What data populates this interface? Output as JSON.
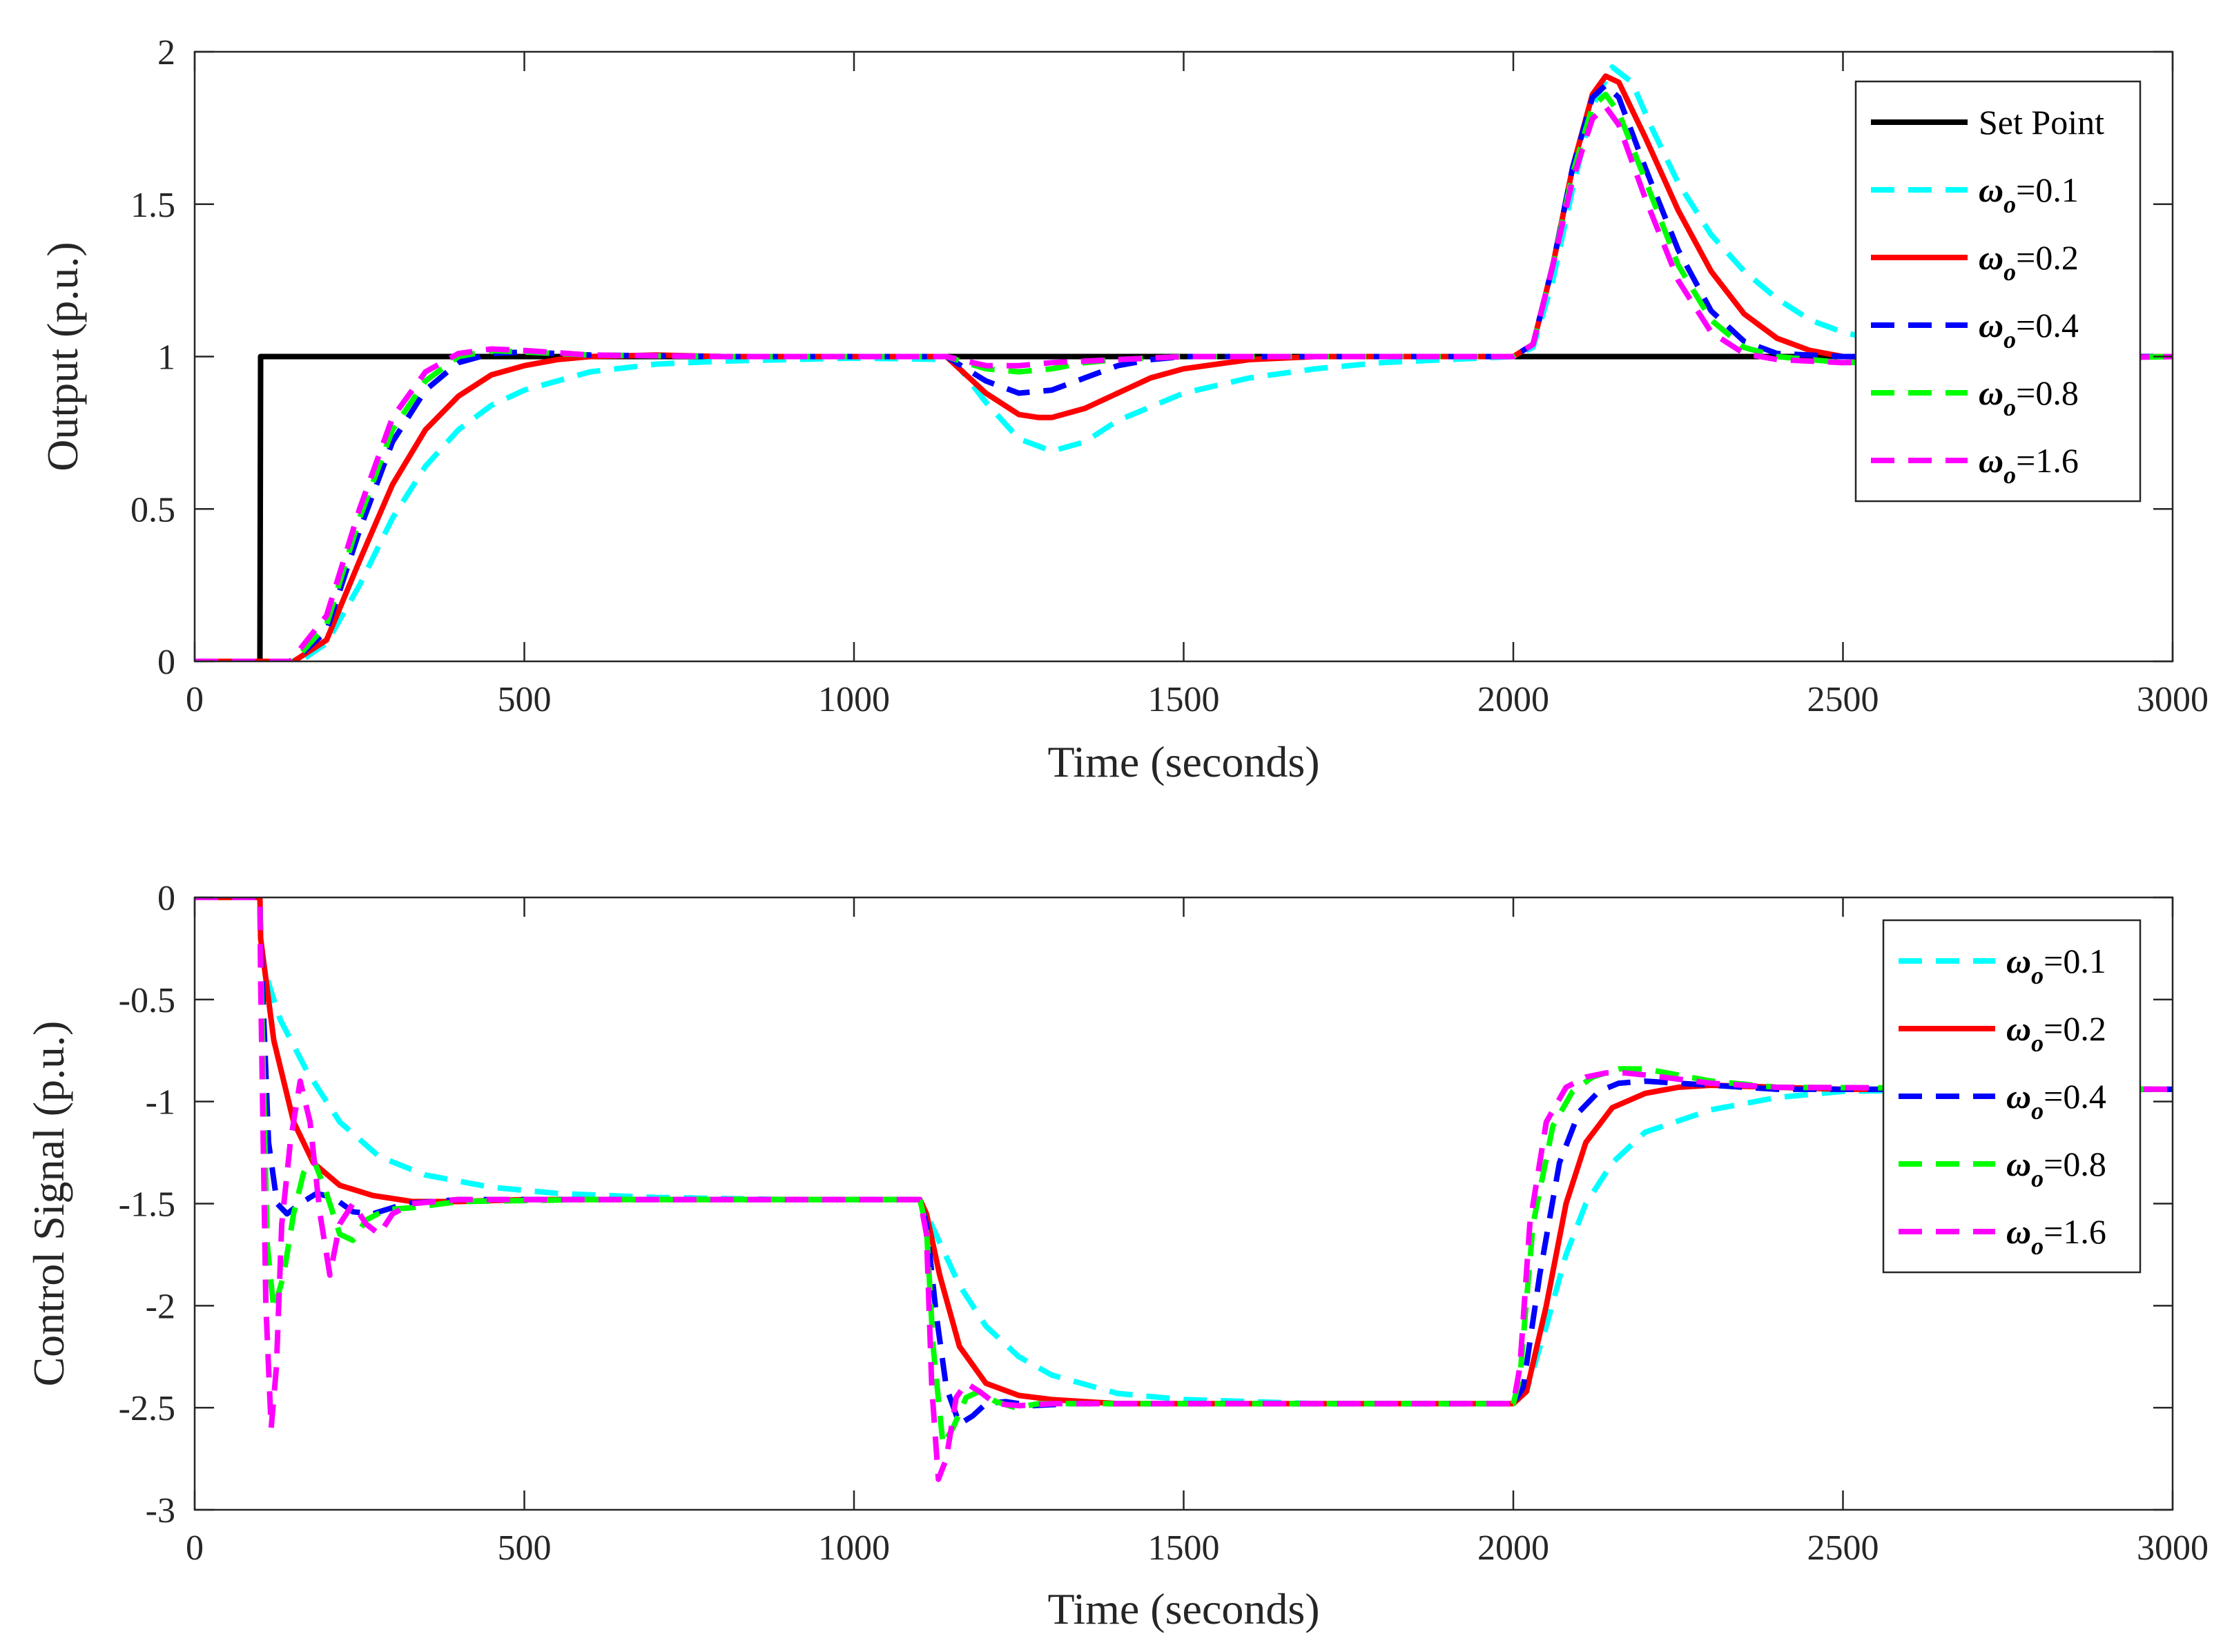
{
  "chart_data": [
    {
      "type": "line",
      "title": "",
      "xlabel": "Time (seconds)",
      "ylabel": "Output (p.u.)",
      "xlim": [
        0,
        3000
      ],
      "ylim": [
        0,
        2
      ],
      "xticks": [
        "0",
        "500",
        "1000",
        "1500",
        "2000",
        "2500",
        "3000"
      ],
      "yticks": [
        "0",
        "0.5",
        "1",
        "1.5",
        "2"
      ],
      "legend_position": "top-right",
      "series": [
        {
          "name": "Set Point",
          "color": "#000000",
          "style": "solid",
          "x": [
            0,
            99,
            100,
            3000
          ],
          "y": [
            0,
            0,
            1,
            1
          ]
        },
        {
          "name": "ω_o=0.1",
          "symbol": "ω",
          "subscript": "o",
          "value": "=0.1",
          "color": "#00ffff",
          "style": "dashed",
          "x": [
            0,
            160,
            200,
            250,
            300,
            350,
            400,
            450,
            500,
            600,
            700,
            800,
            900,
            1000,
            1150,
            1200,
            1250,
            1300,
            1350,
            1400,
            1500,
            1600,
            1700,
            1800,
            1900,
            2000,
            2030,
            2060,
            2090,
            2120,
            2150,
            2180,
            2210,
            2250,
            2300,
            2350,
            2400,
            2450,
            2500,
            2600,
            2700,
            2800,
            3000
          ],
          "y": [
            0,
            0,
            0.06,
            0.25,
            0.47,
            0.64,
            0.76,
            0.84,
            0.89,
            0.95,
            0.975,
            0.985,
            0.99,
            0.995,
            0.99,
            0.85,
            0.73,
            0.69,
            0.72,
            0.79,
            0.88,
            0.93,
            0.96,
            0.98,
            0.99,
            1.0,
            1.03,
            1.25,
            1.55,
            1.82,
            1.95,
            1.9,
            1.75,
            1.57,
            1.4,
            1.28,
            1.19,
            1.12,
            1.08,
            1.03,
            1.01,
            1.0,
            1.0
          ]
        },
        {
          "name": "ω_o=0.2",
          "symbol": "ω",
          "subscript": "o",
          "value": "=0.2",
          "color": "#ff0000",
          "style": "solid",
          "x": [
            0,
            150,
            200,
            250,
            300,
            350,
            400,
            450,
            500,
            550,
            600,
            700,
            800,
            1000,
            1140,
            1200,
            1250,
            1280,
            1300,
            1350,
            1400,
            1450,
            1500,
            1600,
            1700,
            1800,
            2000,
            2030,
            2060,
            2090,
            2120,
            2140,
            2160,
            2200,
            2250,
            2300,
            2350,
            2400,
            2450,
            2500,
            2600,
            3000
          ],
          "y": [
            0,
            0,
            0.07,
            0.33,
            0.58,
            0.76,
            0.87,
            0.94,
            0.97,
            0.99,
            1.0,
            1.005,
            1.0,
            1.0,
            1.0,
            0.88,
            0.81,
            0.8,
            0.8,
            0.83,
            0.88,
            0.93,
            0.96,
            0.99,
            1.0,
            1.0,
            1.0,
            1.04,
            1.3,
            1.62,
            1.86,
            1.92,
            1.9,
            1.72,
            1.48,
            1.28,
            1.14,
            1.06,
            1.02,
            1.0,
            0.995,
            1.0
          ]
        },
        {
          "name": "ω_o=0.4",
          "symbol": "ω",
          "subscript": "o",
          "value": "=0.4",
          "color": "#0000ff",
          "style": "dashed",
          "x": [
            0,
            150,
            200,
            250,
            300,
            350,
            400,
            450,
            500,
            600,
            800,
            1000,
            1140,
            1200,
            1250,
            1300,
            1350,
            1400,
            1450,
            1500,
            1600,
            2000,
            2030,
            2060,
            2090,
            2120,
            2140,
            2160,
            2200,
            2250,
            2300,
            2350,
            2400,
            2500,
            3000
          ],
          "y": [
            0,
            0,
            0.1,
            0.43,
            0.72,
            0.89,
            0.98,
            1.01,
            1.015,
            1.005,
            1.0,
            1.0,
            1.0,
            0.92,
            0.88,
            0.89,
            0.93,
            0.97,
            0.99,
            1.0,
            1.0,
            1.0,
            1.04,
            1.3,
            1.62,
            1.85,
            1.89,
            1.85,
            1.62,
            1.35,
            1.15,
            1.05,
            1.01,
            1.0,
            1.0
          ]
        },
        {
          "name": "ω_o=0.8",
          "symbol": "ω",
          "subscript": "o",
          "value": "=0.8",
          "color": "#00ff00",
          "style": "dashed",
          "x": [
            0,
            150,
            200,
            250,
            300,
            350,
            400,
            450,
            500,
            600,
            800,
            1000,
            1140,
            1200,
            1250,
            1300,
            1350,
            1400,
            1500,
            2000,
            2030,
            2060,
            2090,
            2120,
            2140,
            2160,
            2200,
            2250,
            2300,
            2350,
            2400,
            2500,
            3000
          ],
          "y": [
            0,
            0,
            0.12,
            0.47,
            0.76,
            0.92,
            1.0,
            1.02,
            1.015,
            1.005,
            1.0,
            1.0,
            1.0,
            0.96,
            0.95,
            0.96,
            0.98,
            0.99,
            1.0,
            1.0,
            1.04,
            1.3,
            1.6,
            1.82,
            1.86,
            1.8,
            1.58,
            1.3,
            1.12,
            1.03,
            1.0,
            0.98,
            1.0
          ]
        },
        {
          "name": "ω_o=1.6",
          "symbol": "ω",
          "subscript": "o",
          "value": "=1.6",
          "color": "#ff00ff",
          "style": "dashed",
          "x": [
            0,
            145,
            200,
            250,
            300,
            350,
            400,
            450,
            500,
            600,
            800,
            1000,
            1140,
            1200,
            1250,
            1300,
            1400,
            1500,
            2000,
            2030,
            2060,
            2090,
            2120,
            2140,
            2160,
            2200,
            2250,
            2300,
            2350,
            2400,
            2500,
            3000
          ],
          "y": [
            0,
            0,
            0.15,
            0.5,
            0.8,
            0.95,
            1.01,
            1.025,
            1.02,
            1.005,
            1.0,
            1.0,
            1.0,
            0.97,
            0.97,
            0.98,
            0.99,
            1.0,
            1.0,
            1.04,
            1.3,
            1.58,
            1.78,
            1.82,
            1.76,
            1.52,
            1.25,
            1.08,
            1.01,
            0.99,
            0.98,
            1.0
          ]
        }
      ]
    },
    {
      "type": "line",
      "title": "",
      "xlabel": "Time (seconds)",
      "ylabel": "Control Signal (p.u.)",
      "xlim": [
        0,
        3000
      ],
      "ylim": [
        -3,
        0
      ],
      "xticks": [
        "0",
        "500",
        "1000",
        "1500",
        "2000",
        "2500",
        "3000"
      ],
      "yticks": [
        "-3",
        "-2.5",
        "-2",
        "-1.5",
        "-1",
        "-0.5",
        "0"
      ],
      "legend_position": "top-right",
      "series": [
        {
          "name": "ω_o=0.1",
          "symbol": "ω",
          "subscript": "o",
          "value": "=0.1",
          "color": "#00ffff",
          "style": "dashed",
          "x": [
            0,
            99,
            100,
            130,
            170,
            220,
            280,
            350,
            450,
            550,
            700,
            900,
            1100,
            1120,
            1160,
            1200,
            1250,
            1300,
            1400,
            1500,
            1700,
            2000,
            2020,
            2050,
            2080,
            2110,
            2150,
            2200,
            2300,
            2400,
            2500,
            2700,
            3000
          ],
          "y": [
            0,
            0,
            -0.3,
            -0.6,
            -0.85,
            -1.1,
            -1.27,
            -1.36,
            -1.42,
            -1.45,
            -1.47,
            -1.48,
            -1.48,
            -1.62,
            -1.9,
            -2.1,
            -2.25,
            -2.34,
            -2.43,
            -2.46,
            -2.48,
            -2.48,
            -2.42,
            -2.1,
            -1.75,
            -1.5,
            -1.3,
            -1.15,
            -1.04,
            -0.98,
            -0.95,
            -0.94,
            -0.94
          ]
        },
        {
          "name": "ω_o=0.2",
          "symbol": "ω",
          "subscript": "o",
          "value": "=0.2",
          "color": "#ff0000",
          "style": "solid",
          "x": [
            0,
            99,
            100,
            120,
            150,
            180,
            220,
            270,
            330,
            400,
            500,
            700,
            1100,
            1110,
            1130,
            1160,
            1200,
            1250,
            1300,
            1400,
            1500,
            2000,
            2020,
            2050,
            2080,
            2110,
            2150,
            2200,
            2250,
            2300,
            2400,
            2500,
            3000
          ],
          "y": [
            0,
            0,
            -0.2,
            -0.7,
            -1.1,
            -1.3,
            -1.41,
            -1.46,
            -1.49,
            -1.49,
            -1.48,
            -1.48,
            -1.48,
            -1.55,
            -1.85,
            -2.2,
            -2.38,
            -2.44,
            -2.46,
            -2.48,
            -2.48,
            -2.48,
            -2.42,
            -2.0,
            -1.5,
            -1.2,
            -1.03,
            -0.96,
            -0.93,
            -0.92,
            -0.93,
            -0.94,
            -0.94
          ]
        },
        {
          "name": "ω_o=0.4",
          "symbol": "ω",
          "subscript": "o",
          "value": "=0.4",
          "color": "#0000ff",
          "style": "dashed",
          "x": [
            0,
            99,
            100,
            112,
            125,
            140,
            160,
            185,
            210,
            240,
            270,
            320,
            400,
            600,
            1100,
            1110,
            1125,
            1140,
            1160,
            1180,
            1200,
            1230,
            1270,
            1330,
            1500,
            2000,
            2015,
            2040,
            2070,
            2100,
            2130,
            2160,
            2200,
            2300,
            2400,
            3000
          ],
          "y": [
            0,
            0,
            -0.2,
            -1.2,
            -1.5,
            -1.55,
            -1.5,
            -1.45,
            -1.47,
            -1.54,
            -1.55,
            -1.5,
            -1.48,
            -1.48,
            -1.48,
            -1.6,
            -2.05,
            -2.4,
            -2.58,
            -2.54,
            -2.48,
            -2.47,
            -2.49,
            -2.48,
            -2.48,
            -2.48,
            -2.4,
            -1.85,
            -1.3,
            -1.05,
            -0.95,
            -0.91,
            -0.9,
            -0.92,
            -0.94,
            -0.94
          ]
        },
        {
          "name": "ω_o=0.8",
          "symbol": "ω",
          "subscript": "o",
          "value": "=0.8",
          "color": "#00ff00",
          "style": "dashed",
          "x": [
            0,
            99,
            100,
            110,
            120,
            135,
            150,
            165,
            180,
            200,
            220,
            240,
            260,
            290,
            330,
            400,
            600,
            1100,
            1110,
            1120,
            1135,
            1150,
            1170,
            1190,
            1215,
            1245,
            1280,
            1400,
            2000,
            2010,
            2030,
            2060,
            2090,
            2120,
            2160,
            2200,
            2250,
            2300,
            2400,
            3000
          ],
          "y": [
            0,
            0,
            -0.3,
            -1.7,
            -2.02,
            -1.85,
            -1.55,
            -1.35,
            -1.28,
            -1.45,
            -1.65,
            -1.68,
            -1.58,
            -1.53,
            -1.52,
            -1.49,
            -1.48,
            -1.48,
            -1.62,
            -2.2,
            -2.68,
            -2.6,
            -2.45,
            -2.42,
            -2.47,
            -2.5,
            -2.48,
            -2.48,
            -2.48,
            -2.35,
            -1.6,
            -1.12,
            -0.95,
            -0.88,
            -0.84,
            -0.84,
            -0.87,
            -0.9,
            -0.93,
            -0.94
          ]
        },
        {
          "name": "ω_o=1.6",
          "symbol": "ω",
          "subscript": "o",
          "value": "=1.6",
          "color": "#ff00ff",
          "style": "dashed",
          "x": [
            0,
            99,
            100,
            108,
            116,
            124,
            132,
            145,
            160,
            175,
            190,
            205,
            220,
            240,
            260,
            280,
            300,
            330,
            400,
            600,
            1100,
            1110,
            1118,
            1128,
            1140,
            1155,
            1170,
            1190,
            1215,
            1250,
            1300,
            2000,
            2010,
            2025,
            2050,
            2080,
            2110,
            2140,
            2170,
            2200,
            2250,
            2300,
            2400,
            3000
          ],
          "y": [
            0,
            0,
            -0.4,
            -2.0,
            -2.6,
            -2.3,
            -1.6,
            -1.2,
            -0.9,
            -1.1,
            -1.55,
            -1.85,
            -1.6,
            -1.5,
            -1.6,
            -1.65,
            -1.55,
            -1.5,
            -1.48,
            -1.48,
            -1.48,
            -1.65,
            -2.4,
            -2.85,
            -2.75,
            -2.45,
            -2.38,
            -2.42,
            -2.48,
            -2.49,
            -2.48,
            -2.48,
            -2.3,
            -1.6,
            -1.1,
            -0.93,
            -0.88,
            -0.86,
            -0.86,
            -0.87,
            -0.89,
            -0.91,
            -0.93,
            -0.94
          ]
        }
      ]
    }
  ]
}
